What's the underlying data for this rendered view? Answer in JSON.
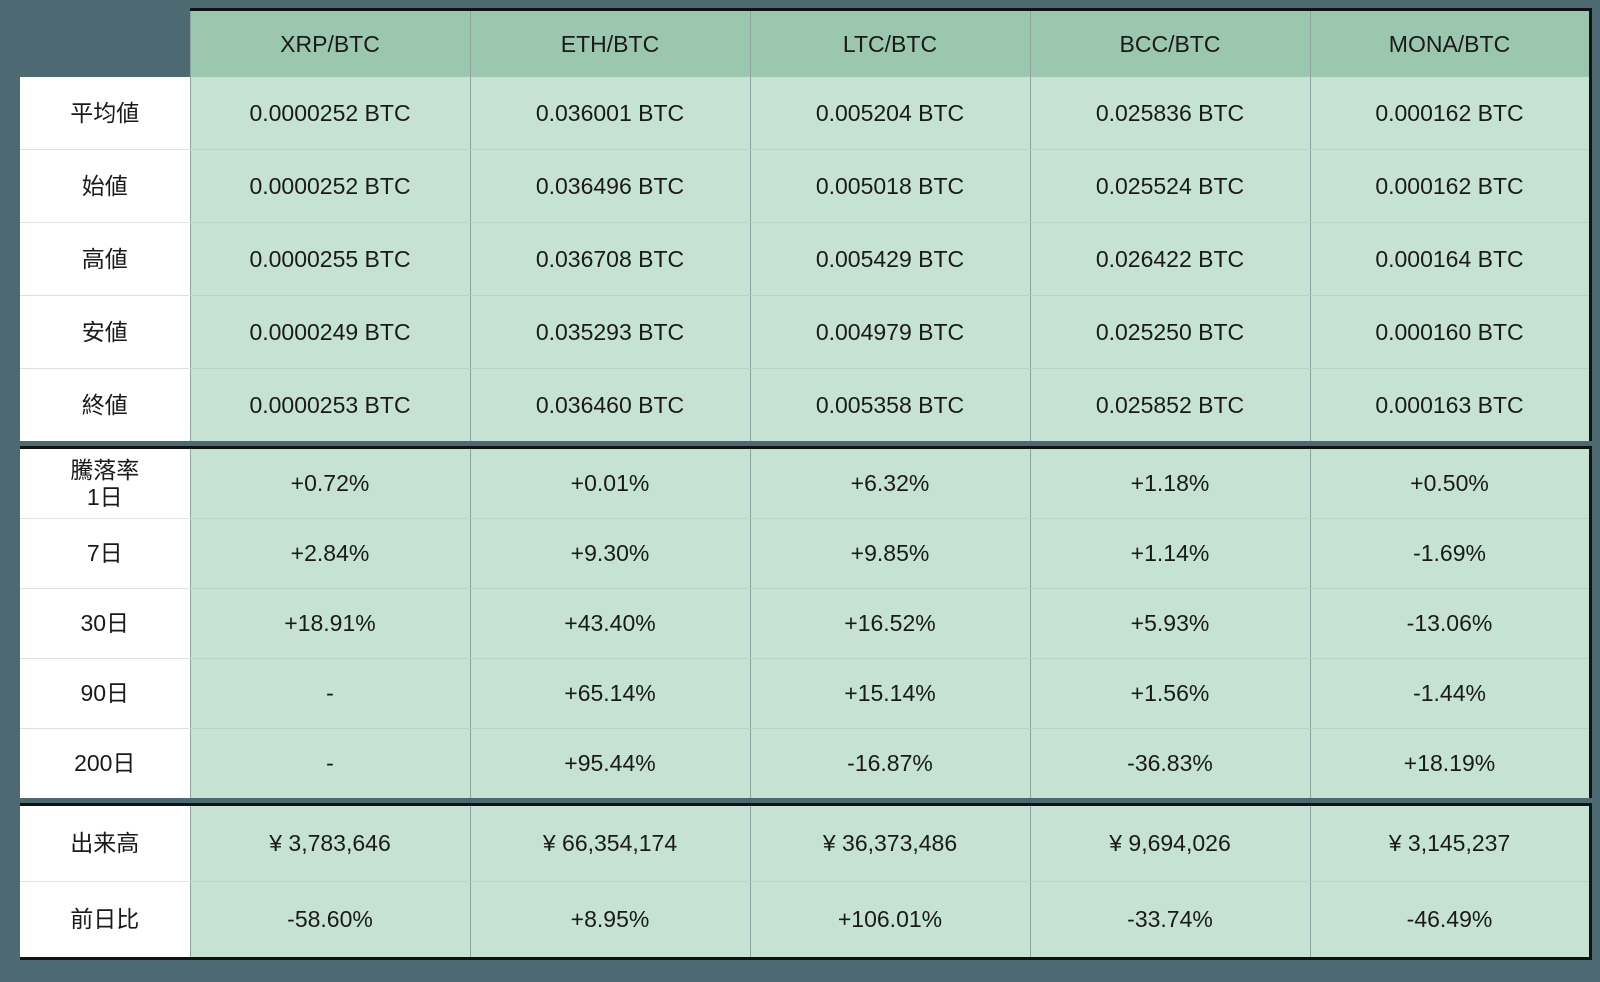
{
  "palette": {
    "background_slate": "#4D6A73",
    "header_green": "#9AC7AD",
    "cell_green": "#C6E2D2",
    "label_white": "#FFFFFF",
    "frame_black": "#101314",
    "grid_line": "#8FA3A0"
  },
  "chart_data": {
    "type": "table",
    "title": "",
    "columns": [
      "XRP/BTC",
      "ETH/BTC",
      "LTC/BTC",
      "BCC/BTC",
      "MONA/BTC"
    ],
    "sections": [
      {
        "name": "prices",
        "rows": [
          {
            "label": "平均値",
            "values": [
              "0.0000252 BTC",
              "0.036001 BTC",
              "0.005204 BTC",
              "0.025836 BTC",
              "0.000162 BTC"
            ]
          },
          {
            "label": "始値",
            "values": [
              "0.0000252 BTC",
              "0.036496 BTC",
              "0.005018 BTC",
              "0.025524 BTC",
              "0.000162 BTC"
            ]
          },
          {
            "label": "高値",
            "values": [
              "0.0000255 BTC",
              "0.036708 BTC",
              "0.005429 BTC",
              "0.026422 BTC",
              "0.000164 BTC"
            ]
          },
          {
            "label": "安値",
            "values": [
              "0.0000249 BTC",
              "0.035293 BTC",
              "0.004979 BTC",
              "0.025250 BTC",
              "0.000160 BTC"
            ]
          },
          {
            "label": "終値",
            "values": [
              "0.0000253 BTC",
              "0.036460 BTC",
              "0.005358 BTC",
              "0.025852 BTC",
              "0.000163 BTC"
            ]
          }
        ]
      },
      {
        "name": "change-rates",
        "rows": [
          {
            "label": "騰落率",
            "label2": "1日",
            "values": [
              "+0.72%",
              "+0.01%",
              "+6.32%",
              "+1.18%",
              "+0.50%"
            ]
          },
          {
            "label": "7日",
            "values": [
              "+2.84%",
              "+9.30%",
              "+9.85%",
              "+1.14%",
              "-1.69%"
            ]
          },
          {
            "label": "30日",
            "values": [
              "+18.91%",
              "+43.40%",
              "+16.52%",
              "+5.93%",
              "-13.06%"
            ]
          },
          {
            "label": "90日",
            "values": [
              "-",
              "+65.14%",
              "+15.14%",
              "+1.56%",
              "-1.44%"
            ]
          },
          {
            "label": "200日",
            "values": [
              "-",
              "+95.44%",
              "-16.87%",
              "-36.83%",
              "+18.19%"
            ]
          }
        ]
      },
      {
        "name": "volume",
        "rows": [
          {
            "label": "出来高",
            "values": [
              "¥ 3,783,646",
              "¥ 66,354,174",
              "¥ 36,373,486",
              "¥ 9,694,026",
              "¥ 3,145,237"
            ]
          },
          {
            "label": "前日比",
            "values": [
              "-58.60%",
              "+8.95%",
              "+106.01%",
              "-33.74%",
              "-46.49%"
            ]
          }
        ]
      }
    ]
  }
}
